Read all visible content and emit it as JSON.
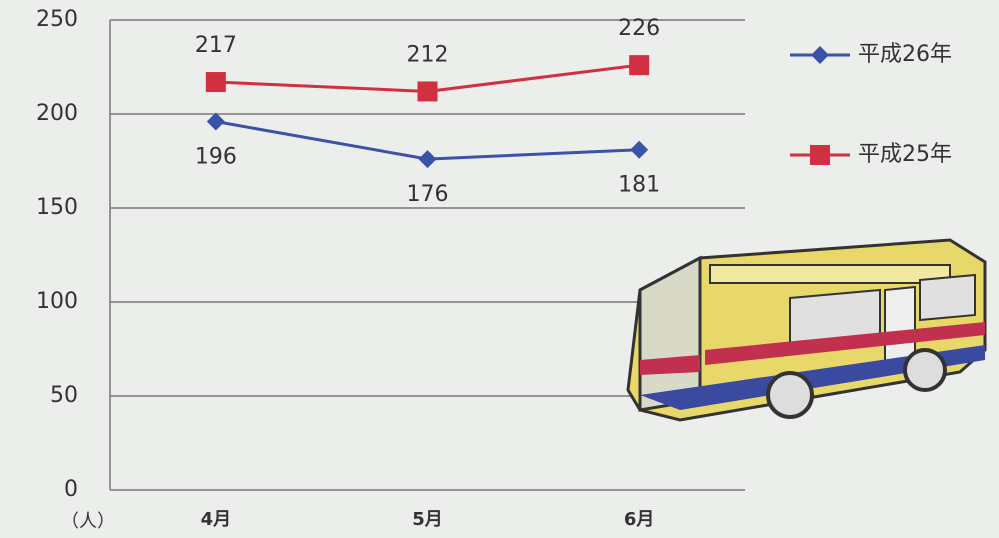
{
  "chart_data": {
    "type": "line",
    "categories": [
      "4月",
      "5月",
      "6月"
    ],
    "series": [
      {
        "name": "平成26年",
        "color": "#3a52a8",
        "marker": "diamond",
        "values": [
          196,
          176,
          181
        ]
      },
      {
        "name": "平成25年",
        "color": "#d0303f",
        "marker": "square",
        "values": [
          217,
          212,
          226
        ]
      }
    ],
    "ylim": [
      0,
      250
    ],
    "yticks": [
      0,
      50,
      100,
      150,
      200,
      250
    ],
    "grid": true,
    "y_unit": "（人）",
    "legend": "right"
  }
}
